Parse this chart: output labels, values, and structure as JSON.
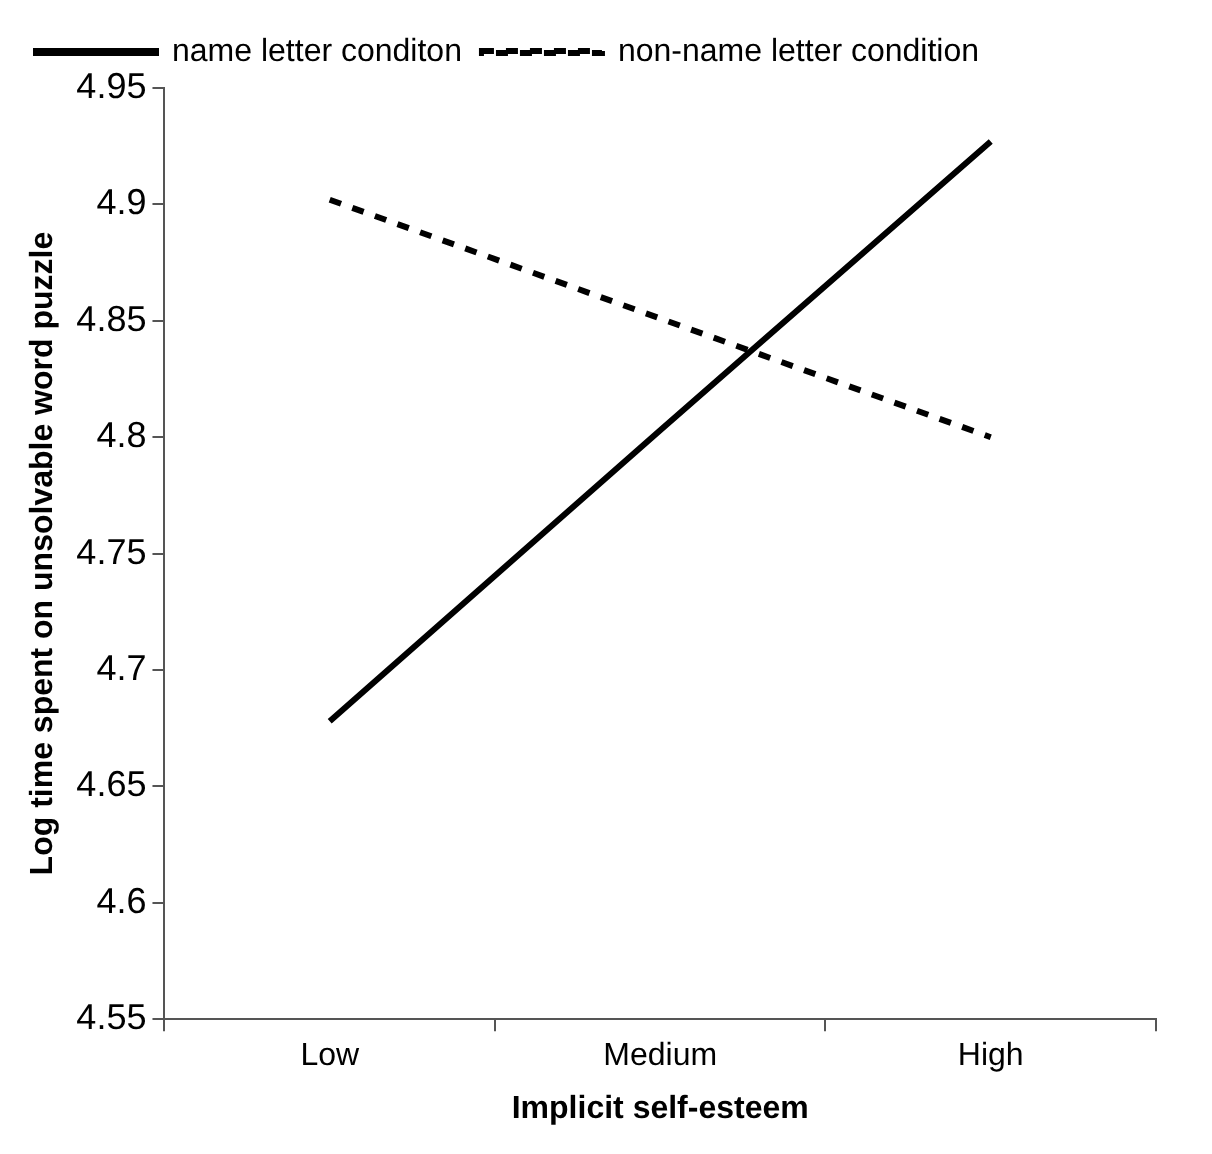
{
  "chart_data": {
    "type": "line",
    "xlabel": "Implicit self-esteem",
    "ylabel": "Log time spent on unsolvable word puzzle",
    "categories": [
      "Low",
      "Medium",
      "High"
    ],
    "series": [
      {
        "name": "name letter conditon",
        "color": "#000000",
        "line_style": "solid",
        "values": [
          4.678,
          4.803,
          4.927
        ]
      },
      {
        "name": "non-name letter condition",
        "color": "#000000",
        "line_style": "dashed",
        "values": [
          4.902,
          4.851,
          4.8
        ]
      }
    ],
    "ylim": [
      4.55,
      4.95
    ],
    "yticks": [
      4.55,
      4.6,
      4.65,
      4.7,
      4.75,
      4.8,
      4.85,
      4.9,
      4.95
    ],
    "grid": false,
    "legend": "top left",
    "marker": "none"
  }
}
